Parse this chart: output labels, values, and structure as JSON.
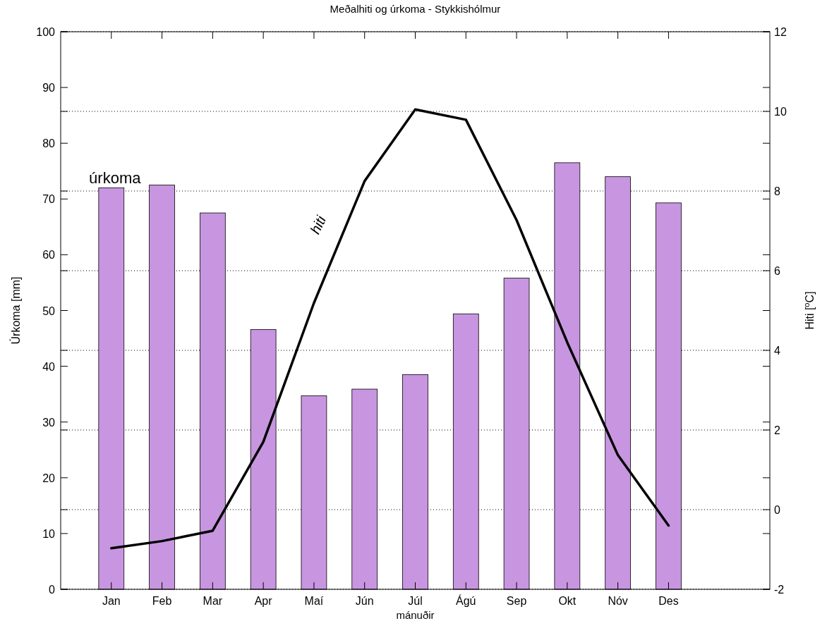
{
  "chart_data": {
    "type": "bar",
    "title": "Meðalhiti og úrkoma - Stykkishólmur",
    "xlabel": "mánuðir",
    "ylabel": "Úrkoma [mm]",
    "y2label": "Hiti [$^{o}$C]",
    "categories": [
      "Jan",
      "Feb",
      "Mar",
      "Apr",
      "Maí",
      "Jún",
      "Júl",
      "Ágú",
      "Sep",
      "Okt",
      "Nóv",
      "Des"
    ],
    "series": [
      {
        "color": "#c896e0",
        "values": [
          72.0,
          72.5,
          67.5,
          46.6,
          34.7,
          35.9,
          38.5,
          49.4,
          55.8,
          76.5,
          74.0,
          69.3
        ]
      },
      {
        "type": "line",
        "axis": "y2",
        "color": "#000000",
        "line_style": "solid",
        "values": [
          -0.97,
          -0.79,
          -0.53,
          1.7,
          5.19,
          8.25,
          10.05,
          9.79,
          7.27,
          4.2,
          1.37,
          -0.4
        ]
      }
    ],
    "ylim": [
      0,
      100
    ],
    "yticks": [
      0,
      10,
      20,
      30,
      40,
      50,
      60,
      70,
      80,
      90,
      100
    ],
    "y2lim": [
      -2,
      12
    ],
    "y2ticks": [
      -2,
      0,
      2,
      4,
      6,
      8,
      10,
      12
    ],
    "grid": "y2",
    "annotations": [
      "úrkoma",
      "hiti"
    ]
  }
}
